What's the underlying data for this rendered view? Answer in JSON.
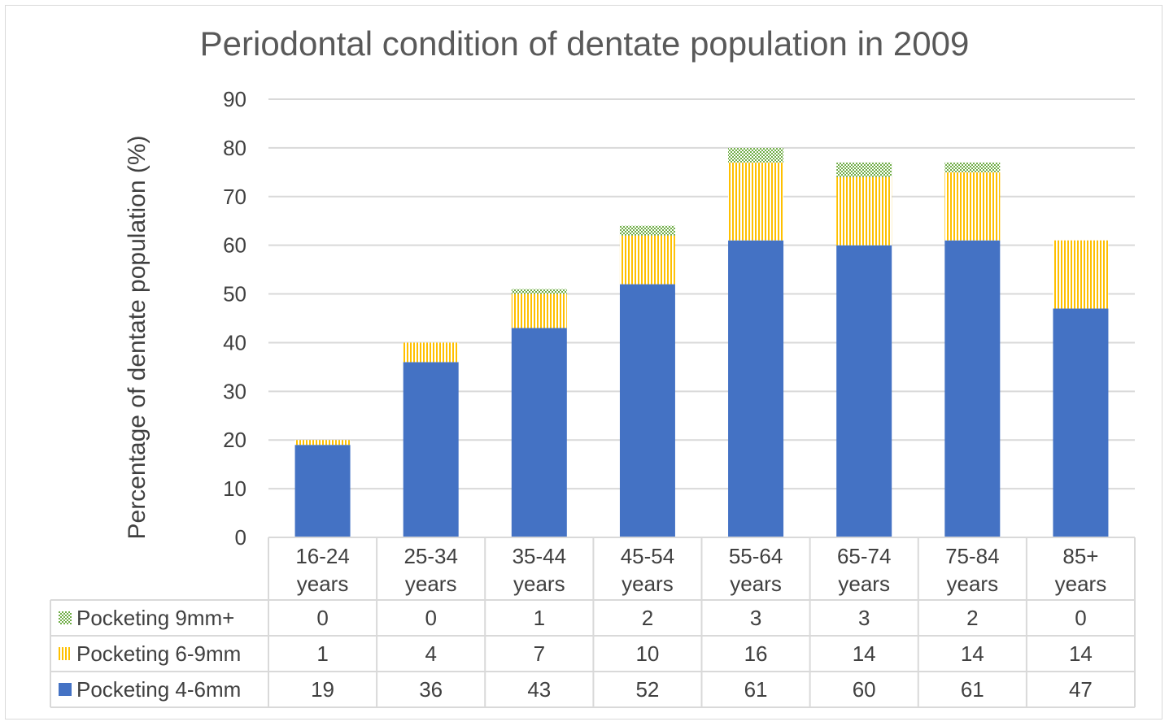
{
  "chart_data": {
    "type": "bar",
    "stacked": true,
    "title": "Periodontal condition of dentate population in 2009",
    "ylabel": "Percentage of dentate population (%)",
    "xlabel": "",
    "ylim": [
      0,
      90
    ],
    "yticks": [
      0,
      10,
      20,
      30,
      40,
      50,
      60,
      70,
      80,
      90
    ],
    "grid": true,
    "legend": "data-table-left",
    "categories": [
      [
        "16-24",
        "years"
      ],
      [
        "25-34",
        "years"
      ],
      [
        "35-44",
        "years"
      ],
      [
        "45-54",
        "years"
      ],
      [
        "55-64",
        "years"
      ],
      [
        "65-74",
        "years"
      ],
      [
        "75-84",
        "years"
      ],
      [
        "85+",
        "years"
      ]
    ],
    "series": [
      {
        "name": "Pocketing 4-6mm",
        "values": [
          19,
          36,
          43,
          52,
          61,
          60,
          61,
          47
        ],
        "color": "#4472c4",
        "pattern": "solid"
      },
      {
        "name": "Pocketing 6-9mm",
        "values": [
          1,
          4,
          7,
          10,
          16,
          14,
          14,
          14
        ],
        "color": "#ffc000",
        "pattern": "vertical-stripes"
      },
      {
        "name": "Pocketing 9mm+",
        "values": [
          0,
          0,
          1,
          2,
          3,
          3,
          2,
          0
        ],
        "color": "#70ad47",
        "pattern": "checker"
      }
    ],
    "table_row_order": [
      "Pocketing 9mm+",
      "Pocketing 6-9mm",
      "Pocketing 4-6mm"
    ]
  }
}
